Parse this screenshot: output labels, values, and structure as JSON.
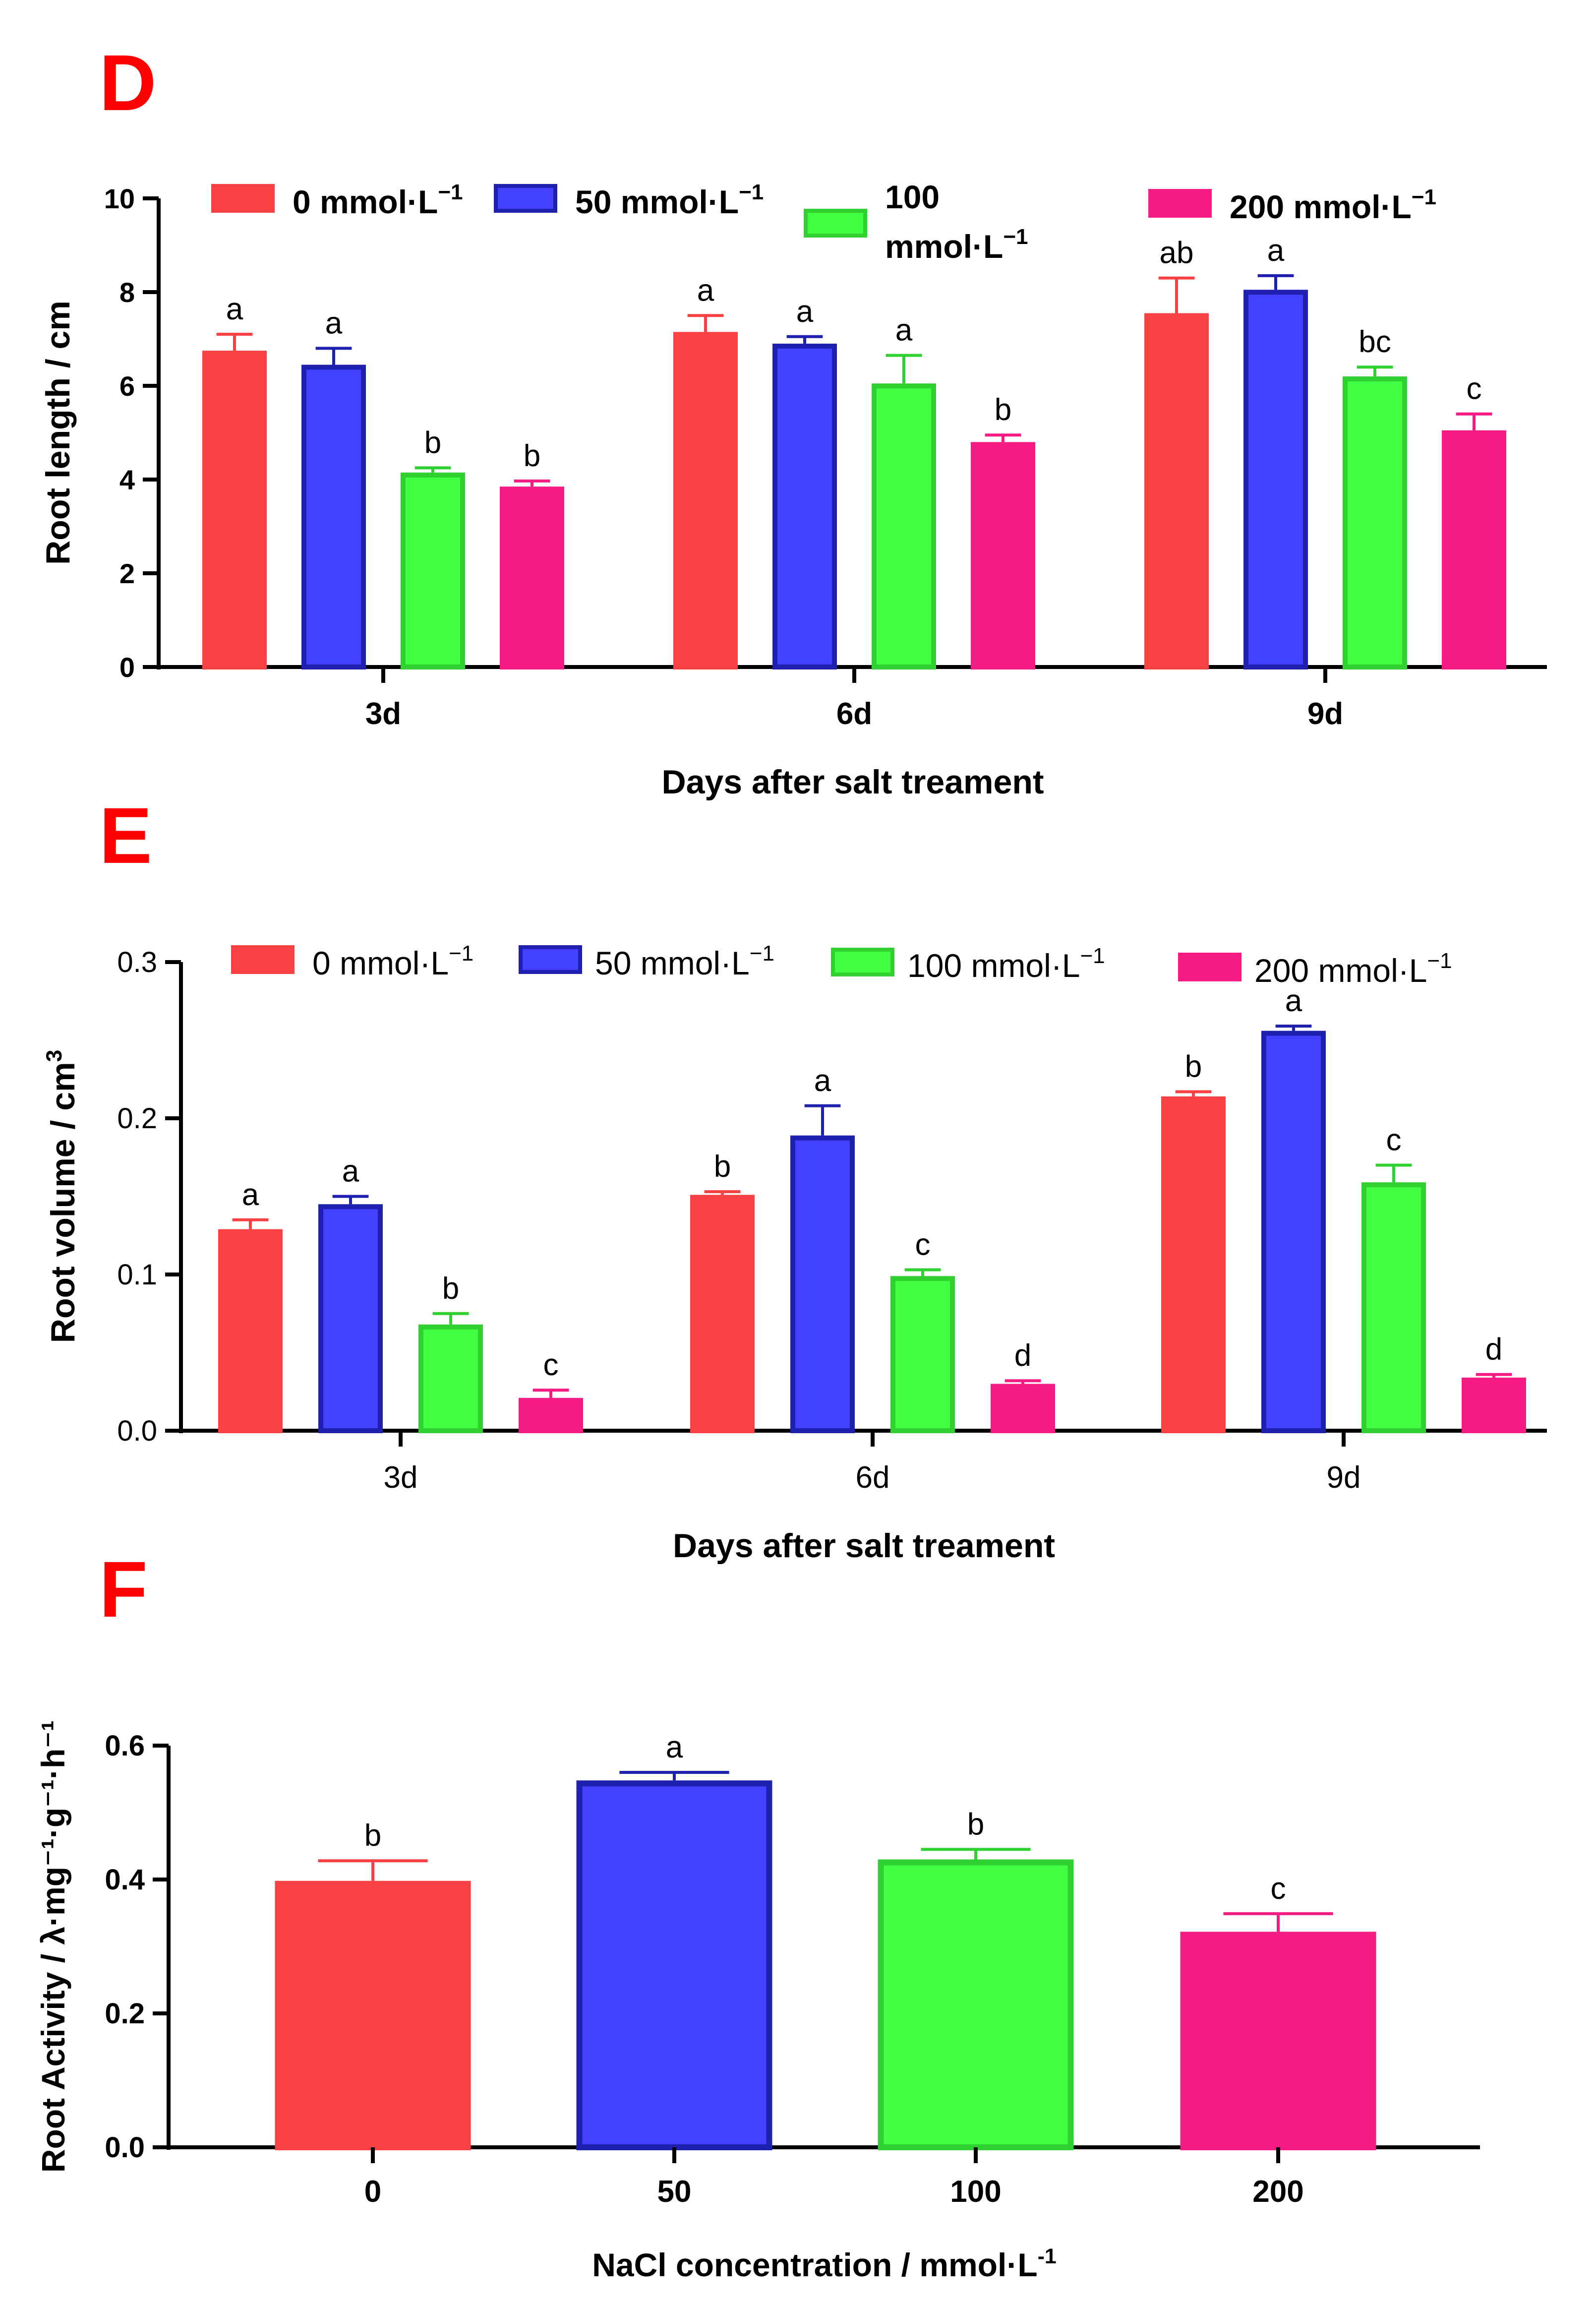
{
  "colors": {
    "c0": {
      "fill": "#F94144",
      "stroke": "#F94144"
    },
    "c50": {
      "fill": "#4141FF",
      "stroke": "#1F1FB0"
    },
    "c100": {
      "fill": "#41FF41",
      "stroke": "#2FD02F"
    },
    "c200": {
      "fill": "#F71B84",
      "stroke": "#F71B84"
    },
    "panel_letter": "#FF0000"
  },
  "panels": [
    {
      "letter": "D"
    },
    {
      "letter": "E"
    },
    {
      "letter": "F"
    }
  ],
  "chart_data": [
    {
      "type": "bar",
      "panel": "D",
      "categories": [
        "3d",
        "6d",
        "9d"
      ],
      "xlabel": "Days after salt treament",
      "ylabel": "Root length / cm",
      "ylim": [
        0,
        10
      ],
      "yticks": [
        "0",
        "2",
        "4",
        "6",
        "8",
        "10"
      ],
      "legend": [
        "0 mmol·L",
        "50 mmol·L",
        "100 mmol·L",
        "200 mmol·L"
      ],
      "legend_sup": "−1",
      "series": [
        {
          "name": "0 mmol·L⁻¹",
          "color": "c0",
          "values": [
            6.75,
            7.15,
            7.55
          ],
          "errors": [
            0.35,
            0.35,
            0.75
          ],
          "letters": [
            "a",
            "a",
            "ab"
          ]
        },
        {
          "name": "50 mmol·L⁻¹",
          "color": "c50",
          "values": [
            6.45,
            6.9,
            8.05
          ],
          "errors": [
            0.35,
            0.15,
            0.3
          ],
          "letters": [
            "a",
            "a",
            "a"
          ]
        },
        {
          "name": "100 mmol·L⁻¹",
          "color": "c100",
          "values": [
            4.15,
            6.05,
            6.2
          ],
          "errors": [
            0.1,
            0.6,
            0.2
          ],
          "letters": [
            "b",
            "a",
            "bc"
          ]
        },
        {
          "name": "200 mmol·L⁻¹",
          "color": "c200",
          "values": [
            3.85,
            4.8,
            5.05
          ],
          "errors": [
            0.12,
            0.15,
            0.35
          ],
          "letters": [
            "b",
            "b",
            "c"
          ]
        }
      ]
    },
    {
      "type": "bar",
      "panel": "E",
      "categories": [
        "3d",
        "6d",
        "9d"
      ],
      "xlabel": "Days after salt treament",
      "ylabel": "Root volume / cm",
      "ylabel_sup": "3",
      "ylim": [
        0,
        0.3
      ],
      "yticks": [
        "0.0",
        "0.1",
        "0.2",
        "0.3"
      ],
      "legend": [
        "0 mmol·L",
        "50 mmol·L",
        "100 mmol·L",
        "200 mmol·L"
      ],
      "legend_sup": "−1",
      "series": [
        {
          "name": "0 mmol·L⁻¹",
          "color": "c0",
          "values": [
            0.129,
            0.151,
            0.214
          ],
          "errors": [
            0.006,
            0.002,
            0.003
          ],
          "letters": [
            "a",
            "b",
            "b"
          ]
        },
        {
          "name": "50 mmol·L⁻¹",
          "color": "c50",
          "values": [
            0.145,
            0.189,
            0.256
          ],
          "errors": [
            0.005,
            0.019,
            0.003
          ],
          "letters": [
            "a",
            "a",
            "a"
          ]
        },
        {
          "name": "100 mmol·L⁻¹",
          "color": "c100",
          "values": [
            0.068,
            0.099,
            0.159
          ],
          "errors": [
            0.007,
            0.004,
            0.011
          ],
          "letters": [
            "b",
            "c",
            "c"
          ]
        },
        {
          "name": "200 mmol·L⁻¹",
          "color": "c200",
          "values": [
            0.021,
            0.03,
            0.034
          ],
          "errors": [
            0.005,
            0.002,
            0.002
          ],
          "letters": [
            "c",
            "d",
            "d"
          ]
        }
      ]
    },
    {
      "type": "bar",
      "panel": "F",
      "categories": [
        "0",
        "50",
        "100",
        "200"
      ],
      "xlabel": "NaCl concentration / mmol·L",
      "xlabel_sup": "-1",
      "ylabel": "Root Activity / λ·mg⁻¹·g⁻¹·h⁻¹",
      "ylim": [
        0,
        0.6
      ],
      "yticks": [
        "0.0",
        "0.2",
        "0.4",
        "0.6"
      ],
      "series": [
        {
          "name": "Root activity",
          "values": [
            0.398,
            0.548,
            0.43,
            0.322
          ],
          "errors": [
            0.03,
            0.012,
            0.015,
            0.027
          ],
          "letters": [
            "b",
            "a",
            "b",
            "c"
          ],
          "colors": [
            "c0",
            "c50",
            "c100",
            "c200"
          ]
        }
      ]
    }
  ]
}
